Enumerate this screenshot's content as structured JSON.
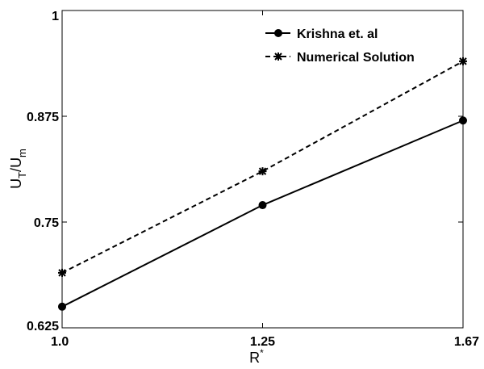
{
  "chart_data": {
    "type": "line",
    "x_ticks": [
      "1.0",
      "1.25",
      "1.67"
    ],
    "y_ticks": [
      "0.625",
      "0.75",
      "0.875",
      "1"
    ],
    "xlabel": "R",
    "xlabel_sup": "*",
    "ylabel_main": "U",
    "ylabel_sub1": "T",
    "ylabel_mid": "/U",
    "ylabel_sub2": "m",
    "ylim": [
      0.625,
      1.0
    ],
    "grid": false,
    "legend_position": "top-right",
    "series": [
      {
        "name": "Krishna et. al",
        "style": "solid",
        "marker": "circle",
        "color": "#000000",
        "values": [
          0.65,
          0.77,
          0.87
        ]
      },
      {
        "name": "Numerical Solution",
        "style": "dashed",
        "marker": "star",
        "color": "#000000",
        "values": [
          0.69,
          0.81,
          0.94
        ]
      }
    ]
  }
}
